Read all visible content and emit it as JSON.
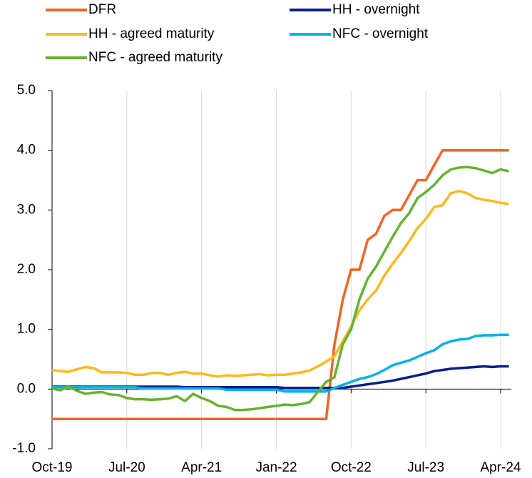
{
  "chart_data": {
    "type": "line",
    "categories": [
      "Oct-19",
      null,
      null,
      null,
      null,
      null,
      null,
      null,
      null,
      "Jul-20",
      null,
      null,
      null,
      null,
      null,
      null,
      null,
      null,
      "Apr-21",
      null,
      null,
      null,
      null,
      null,
      null,
      null,
      null,
      "Jan-22",
      null,
      null,
      null,
      null,
      null,
      null,
      null,
      null,
      "Oct-22",
      null,
      null,
      null,
      null,
      null,
      null,
      null,
      null,
      "Jul-23",
      null,
      null,
      null,
      null,
      null,
      null,
      null,
      null,
      "Apr-24",
      null
    ],
    "series": [
      {
        "name": "DFR",
        "color": "#f26522",
        "values": [
          -0.5,
          -0.5,
          -0.5,
          -0.5,
          -0.5,
          -0.5,
          -0.5,
          -0.5,
          -0.5,
          -0.5,
          -0.5,
          -0.5,
          -0.5,
          -0.5,
          -0.5,
          -0.5,
          -0.5,
          -0.5,
          -0.5,
          -0.5,
          -0.5,
          -0.5,
          -0.5,
          -0.5,
          -0.5,
          -0.5,
          -0.5,
          -0.5,
          -0.5,
          -0.5,
          -0.5,
          -0.5,
          -0.5,
          -0.5,
          0.75,
          1.5,
          2.0,
          2.0,
          2.5,
          2.6,
          2.9,
          3.0,
          3.0,
          3.25,
          3.5,
          3.5,
          3.75,
          4.0,
          4.0,
          4.0,
          4.0,
          4.0,
          4.0,
          4.0,
          4.0,
          4.0
        ]
      },
      {
        "name": "HH - overnight",
        "color": "#0a1e8c",
        "values": [
          0.04,
          0.04,
          0.04,
          0.04,
          0.04,
          0.04,
          0.04,
          0.04,
          0.04,
          0.04,
          0.04,
          0.04,
          0.04,
          0.04,
          0.04,
          0.04,
          0.03,
          0.03,
          0.03,
          0.03,
          0.03,
          0.03,
          0.03,
          0.03,
          0.03,
          0.03,
          0.03,
          0.03,
          0.02,
          0.02,
          0.02,
          0.02,
          0.02,
          0.02,
          0.02,
          0.02,
          0.04,
          0.06,
          0.08,
          0.1,
          0.12,
          0.14,
          0.17,
          0.2,
          0.23,
          0.26,
          0.3,
          0.32,
          0.34,
          0.35,
          0.36,
          0.37,
          0.38,
          0.37,
          0.38,
          0.38
        ]
      },
      {
        "name": "HH - agreed maturity",
        "color": "#ffb81c",
        "values": [
          0.32,
          0.3,
          0.29,
          0.33,
          0.37,
          0.35,
          0.28,
          0.28,
          0.28,
          0.27,
          0.24,
          0.24,
          0.27,
          0.27,
          0.24,
          0.27,
          0.29,
          0.26,
          0.26,
          0.23,
          0.21,
          0.23,
          0.22,
          0.23,
          0.24,
          0.25,
          0.23,
          0.24,
          0.24,
          0.26,
          0.28,
          0.31,
          0.38,
          0.46,
          0.55,
          0.8,
          1.05,
          1.32,
          1.5,
          1.65,
          1.9,
          2.1,
          2.28,
          2.48,
          2.7,
          2.85,
          3.05,
          3.08,
          3.28,
          3.32,
          3.28,
          3.2,
          3.17,
          3.15,
          3.12,
          3.1
        ]
      },
      {
        "name": "NFC - overnight",
        "color": "#00b1ea",
        "values": [
          0.03,
          0.03,
          0.03,
          0.03,
          0.03,
          0.03,
          0.03,
          0.03,
          0.03,
          0.03,
          0.03,
          0.01,
          0.01,
          0.01,
          0.01,
          0.01,
          0.01,
          0.01,
          0.01,
          0.01,
          0.01,
          -0.01,
          -0.01,
          -0.01,
          -0.01,
          -0.01,
          -0.01,
          -0.01,
          -0.04,
          -0.04,
          -0.04,
          -0.04,
          -0.04,
          -0.04,
          0.02,
          0.07,
          0.12,
          0.17,
          0.2,
          0.25,
          0.32,
          0.4,
          0.44,
          0.48,
          0.54,
          0.6,
          0.65,
          0.75,
          0.8,
          0.83,
          0.84,
          0.89,
          0.9,
          0.9,
          0.91,
          0.91
        ]
      },
      {
        "name": "NFC - agreed maturity",
        "color": "#65b32e",
        "values": [
          0.01,
          -0.02,
          0.04,
          -0.03,
          -0.08,
          -0.06,
          -0.05,
          -0.09,
          -0.1,
          -0.15,
          -0.17,
          -0.17,
          -0.18,
          -0.17,
          -0.16,
          -0.12,
          -0.2,
          -0.08,
          -0.15,
          -0.2,
          -0.28,
          -0.3,
          -0.35,
          -0.35,
          -0.34,
          -0.32,
          -0.3,
          -0.28,
          -0.26,
          -0.27,
          -0.25,
          -0.22,
          -0.05,
          0.12,
          0.2,
          0.75,
          1.0,
          1.5,
          1.85,
          2.05,
          2.3,
          2.55,
          2.78,
          2.95,
          3.2,
          3.3,
          3.42,
          3.58,
          3.68,
          3.71,
          3.72,
          3.7,
          3.66,
          3.62,
          3.68,
          3.65
        ]
      }
    ],
    "ylim": [
      -1,
      5
    ],
    "yticks": [
      {
        "value": -1,
        "label": "-1.0"
      },
      {
        "value": 0,
        "label": "0.0"
      },
      {
        "value": 1,
        "label": "1.0"
      },
      {
        "value": 2,
        "label": "2.0"
      },
      {
        "value": 3,
        "label": "3.0"
      },
      {
        "value": 4,
        "label": "4.0"
      },
      {
        "value": 5,
        "label": "5.0"
      }
    ],
    "grid": true
  }
}
